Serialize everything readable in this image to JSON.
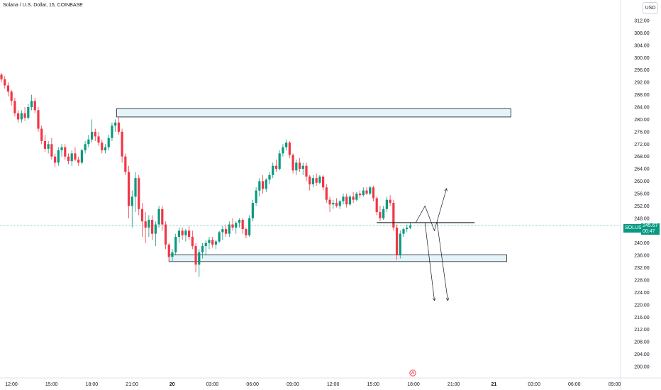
{
  "header": {
    "title": "Solana / U.S. Dollar, 15, COINBASE",
    "currency": "USD"
  },
  "price_tag": {
    "symbol": "SOLUSD",
    "price": "245.67",
    "countdown": "00:47"
  },
  "chart_data": {
    "type": "candlestick",
    "title": "Solana / U.S. Dollar, 15, COINBASE",
    "y_ticks": [
      "312.00",
      "308.00",
      "304.00",
      "300.00",
      "296.00",
      "292.00",
      "288.00",
      "284.00",
      "280.00",
      "276.00",
      "272.00",
      "268.00",
      "264.00",
      "260.00",
      "256.00",
      "252.00",
      "248.00",
      "244.00",
      "240.00",
      "236.00",
      "232.00",
      "228.00",
      "224.00",
      "220.00",
      "216.00",
      "212.00",
      "208.00",
      "204.00",
      "200.00"
    ],
    "ylim": [
      198,
      314
    ],
    "x_ticks": [
      "12:00",
      "15:00",
      "18:00",
      "21:00",
      "20",
      "03:00",
      "06:00",
      "09:00",
      "12:00",
      "15:00",
      "18:00",
      "21:00",
      "21",
      "03:00",
      "06:00",
      "09:00"
    ],
    "x_tick_hours": [
      0,
      3,
      6,
      9,
      12,
      15,
      18,
      21,
      24,
      27,
      30,
      33,
      36,
      39,
      42,
      45
    ],
    "current_price": 245.67,
    "candles": [
      [
        0.0,
        294.5,
        295.0,
        292.0,
        293.0
      ],
      [
        0.25,
        293.0,
        294.0,
        290.0,
        291.0
      ],
      [
        0.5,
        291.0,
        292.0,
        287.5,
        289.0
      ],
      [
        0.75,
        289.0,
        289.5,
        284.5,
        286.0
      ],
      [
        1.0,
        286.0,
        287.0,
        281.0,
        282.0
      ],
      [
        1.25,
        282.0,
        283.0,
        279.0,
        280.0
      ],
      [
        1.5,
        280.0,
        283.0,
        279.0,
        282.0
      ],
      [
        1.75,
        282.0,
        284.0,
        279.5,
        280.5
      ],
      [
        2.0,
        280.5,
        285.0,
        280.0,
        284.0
      ],
      [
        2.25,
        284.0,
        288.0,
        283.0,
        286.0
      ],
      [
        2.5,
        286.0,
        287.0,
        282.0,
        283.0
      ],
      [
        2.75,
        283.0,
        284.0,
        276.0,
        277.0
      ],
      [
        3.0,
        277.0,
        278.0,
        272.0,
        273.0
      ],
      [
        3.25,
        273.0,
        275.0,
        269.5,
        270.5
      ],
      [
        3.5,
        270.5,
        273.0,
        269.0,
        272.0
      ],
      [
        3.75,
        272.0,
        274.0,
        267.0,
        268.0
      ],
      [
        4.0,
        268.0,
        269.0,
        264.5,
        266.0
      ],
      [
        4.25,
        266.0,
        271.0,
        265.0,
        270.0
      ],
      [
        4.5,
        270.0,
        272.0,
        268.0,
        271.0
      ],
      [
        4.75,
        271.0,
        272.0,
        267.0,
        268.0
      ],
      [
        5.0,
        268.0,
        269.0,
        265.5,
        266.5
      ],
      [
        5.25,
        266.5,
        270.0,
        265.0,
        269.0
      ],
      [
        5.5,
        269.0,
        271.0,
        266.5,
        267.0
      ],
      [
        5.75,
        267.0,
        268.0,
        265.0,
        266.0
      ],
      [
        6.0,
        266.0,
        270.5,
        265.5,
        270.0
      ],
      [
        6.25,
        270.0,
        273.0,
        269.0,
        272.0
      ],
      [
        6.5,
        272.0,
        275.0,
        271.0,
        273.5
      ],
      [
        6.75,
        273.5,
        280.0,
        272.5,
        276.0
      ],
      [
        7.0,
        276.0,
        277.0,
        273.0,
        274.5
      ],
      [
        7.25,
        274.5,
        276.0,
        271.5,
        272.5
      ],
      [
        7.5,
        272.5,
        273.5,
        269.0,
        270.0
      ],
      [
        7.75,
        270.0,
        272.0,
        269.0,
        271.0
      ],
      [
        8.0,
        271.0,
        275.0,
        270.0,
        274.0
      ],
      [
        8.25,
        274.0,
        279.0,
        273.0,
        278.0
      ],
      [
        8.5,
        278.0,
        280.0,
        276.0,
        279.0
      ],
      [
        8.75,
        279.0,
        281.0,
        275.0,
        276.0
      ],
      [
        9.0,
        276.0,
        277.0,
        266.0,
        268.0
      ],
      [
        9.25,
        268.0,
        269.0,
        262.0,
        263.0
      ],
      [
        9.5,
        263.0,
        265.0,
        248.0,
        252.0
      ],
      [
        9.75,
        252.0,
        257.0,
        245.0,
        255.0
      ],
      [
        10.0,
        255.0,
        263.0,
        250.0,
        261.0
      ],
      [
        10.25,
        261.0,
        262.0,
        249.0,
        251.0
      ],
      [
        10.5,
        251.0,
        253.0,
        242.0,
        247.0
      ],
      [
        10.75,
        247.0,
        250.0,
        240.0,
        245.0
      ],
      [
        11.0,
        245.0,
        249.0,
        242.0,
        247.5
      ],
      [
        11.25,
        247.5,
        249.0,
        241.0,
        243.0
      ],
      [
        11.5,
        243.0,
        247.0,
        239.0,
        246.0
      ],
      [
        11.75,
        246.0,
        252.0,
        245.0,
        251.0
      ],
      [
        12.0,
        251.0,
        252.0,
        244.0,
        246.0
      ],
      [
        12.25,
        246.0,
        247.0,
        238.0,
        239.5
      ],
      [
        12.5,
        239.5,
        240.0,
        234.0,
        235.5
      ],
      [
        12.75,
        235.5,
        238.0,
        234.0,
        237.0
      ],
      [
        13.0,
        237.0,
        243.0,
        236.0,
        242.0
      ],
      [
        13.25,
        242.0,
        245.0,
        240.0,
        244.0
      ],
      [
        13.5,
        244.0,
        245.0,
        241.0,
        242.5
      ],
      [
        13.75,
        242.5,
        244.5,
        240.5,
        244.0
      ],
      [
        14.0,
        244.0,
        245.5,
        241.0,
        242.0
      ],
      [
        14.25,
        242.0,
        244.0,
        238.0,
        239.0
      ],
      [
        14.5,
        239.0,
        240.0,
        230.5,
        233.0
      ],
      [
        14.75,
        233.0,
        238.0,
        229.0,
        237.0
      ],
      [
        15.0,
        237.0,
        240.0,
        235.0,
        239.0
      ],
      [
        15.25,
        239.0,
        241.0,
        236.0,
        240.0
      ],
      [
        15.5,
        240.0,
        242.0,
        238.0,
        241.0
      ],
      [
        15.75,
        241.0,
        242.0,
        238.5,
        239.5
      ],
      [
        16.0,
        239.5,
        241.0,
        238.0,
        240.5
      ],
      [
        16.25,
        240.5,
        244.0,
        240.0,
        243.5
      ],
      [
        16.5,
        243.5,
        245.5,
        241.0,
        244.5
      ],
      [
        16.75,
        244.5,
        246.0,
        242.0,
        243.0
      ],
      [
        17.0,
        243.0,
        247.0,
        242.0,
        246.0
      ],
      [
        17.25,
        246.0,
        248.0,
        244.0,
        245.0
      ],
      [
        17.5,
        245.0,
        247.0,
        243.0,
        246.5
      ],
      [
        17.75,
        246.5,
        248.0,
        245.0,
        247.5
      ],
      [
        18.0,
        247.5,
        248.0,
        243.0,
        244.5
      ],
      [
        18.25,
        244.5,
        245.0,
        241.5,
        242.5
      ],
      [
        18.5,
        242.5,
        249.0,
        242.0,
        248.0
      ],
      [
        18.75,
        248.0,
        254.0,
        247.0,
        253.0
      ],
      [
        19.0,
        253.0,
        258.0,
        252.0,
        257.0
      ],
      [
        19.25,
        257.0,
        261.0,
        255.0,
        260.0
      ],
      [
        19.5,
        260.0,
        262.0,
        256.0,
        257.5
      ],
      [
        19.75,
        257.5,
        261.0,
        256.5,
        260.5
      ],
      [
        20.0,
        260.5,
        263.0,
        259.0,
        262.0
      ],
      [
        20.25,
        262.0,
        266.0,
        261.0,
        265.0
      ],
      [
        20.5,
        265.0,
        267.0,
        263.0,
        264.0
      ],
      [
        20.75,
        264.0,
        270.0,
        263.5,
        269.0
      ],
      [
        21.0,
        269.0,
        272.0,
        268.0,
        271.0
      ],
      [
        21.25,
        271.0,
        273.5,
        270.0,
        272.5
      ],
      [
        21.5,
        272.5,
        273.0,
        267.5,
        268.5
      ],
      [
        21.75,
        268.5,
        269.0,
        262.5,
        263.5
      ],
      [
        22.0,
        263.5,
        267.0,
        262.0,
        266.0
      ],
      [
        22.25,
        266.0,
        267.5,
        263.0,
        264.0
      ],
      [
        22.5,
        264.0,
        266.0,
        262.0,
        265.0
      ],
      [
        22.75,
        265.0,
        266.0,
        260.0,
        261.5
      ],
      [
        23.0,
        261.5,
        262.0,
        257.0,
        259.0
      ],
      [
        23.25,
        259.0,
        262.0,
        258.0,
        261.0
      ],
      [
        23.5,
        261.0,
        262.5,
        258.5,
        259.5
      ],
      [
        23.75,
        259.5,
        262.0,
        259.0,
        261.5
      ],
      [
        24.0,
        261.5,
        262.0,
        257.0,
        258.0
      ],
      [
        24.25,
        258.0,
        259.0,
        253.0,
        254.0
      ],
      [
        24.5,
        254.0,
        255.0,
        250.0,
        252.5
      ],
      [
        24.75,
        252.5,
        254.0,
        251.0,
        253.0
      ],
      [
        25.0,
        253.0,
        254.5,
        251.5,
        252.0
      ],
      [
        25.25,
        252.0,
        254.0,
        251.0,
        253.5
      ],
      [
        25.5,
        253.5,
        256.0,
        252.5,
        255.0
      ],
      [
        25.75,
        255.0,
        256.0,
        251.5,
        252.5
      ],
      [
        26.0,
        252.5,
        255.5,
        252.0,
        255.0
      ],
      [
        26.25,
        255.0,
        256.5,
        253.0,
        254.0
      ],
      [
        26.5,
        254.0,
        256.5,
        253.5,
        256.0
      ],
      [
        26.75,
        256.0,
        257.0,
        254.5,
        255.5
      ],
      [
        27.0,
        255.5,
        258.0,
        255.0,
        257.0
      ],
      [
        27.25,
        257.0,
        258.0,
        255.5,
        256.0
      ],
      [
        27.5,
        256.0,
        258.5,
        255.5,
        258.0
      ],
      [
        27.75,
        258.0,
        258.5,
        253.5,
        254.5
      ],
      [
        28.0,
        254.5,
        255.0,
        249.0,
        250.0
      ],
      [
        28.25,
        250.0,
        252.0,
        247.0,
        248.0
      ],
      [
        28.5,
        248.0,
        252.0,
        247.5,
        251.0
      ],
      [
        28.75,
        251.0,
        255.0,
        250.0,
        254.0
      ],
      [
        29.0,
        254.0,
        255.5,
        252.0,
        253.0
      ],
      [
        29.25,
        253.0,
        254.0,
        244.0,
        245.0
      ],
      [
        29.5,
        245.0,
        246.0,
        234.5,
        236.0
      ],
      [
        29.75,
        236.0,
        244.0,
        235.0,
        243.0
      ],
      [
        30.0,
        243.0,
        245.0,
        242.0,
        244.5
      ],
      [
        30.25,
        244.5,
        246.0,
        243.5,
        245.0
      ],
      [
        30.5,
        245.0,
        246.5,
        244.5,
        245.67
      ]
    ],
    "zones": [
      {
        "x0": 8.6,
        "x1": 38.0,
        "y0": 280.8,
        "y1": 283.5
      },
      {
        "x0": 12.5,
        "x1": 37.7,
        "y0": 234.0,
        "y1": 236.2
      }
    ],
    "horizontal_line": {
      "x0": 28.0,
      "x1": 35.3,
      "y": 246.6
    },
    "paths": [
      [
        [
          30.9,
          246.5
        ],
        [
          31.6,
          252.0
        ],
        [
          32.3,
          244.0
        ],
        [
          33.2,
          257.5
        ]
      ],
      [
        [
          31.6,
          246.5
        ],
        [
          32.3,
          221.5
        ]
      ],
      [
        [
          32.5,
          246.5
        ],
        [
          33.3,
          221.5
        ]
      ]
    ]
  }
}
